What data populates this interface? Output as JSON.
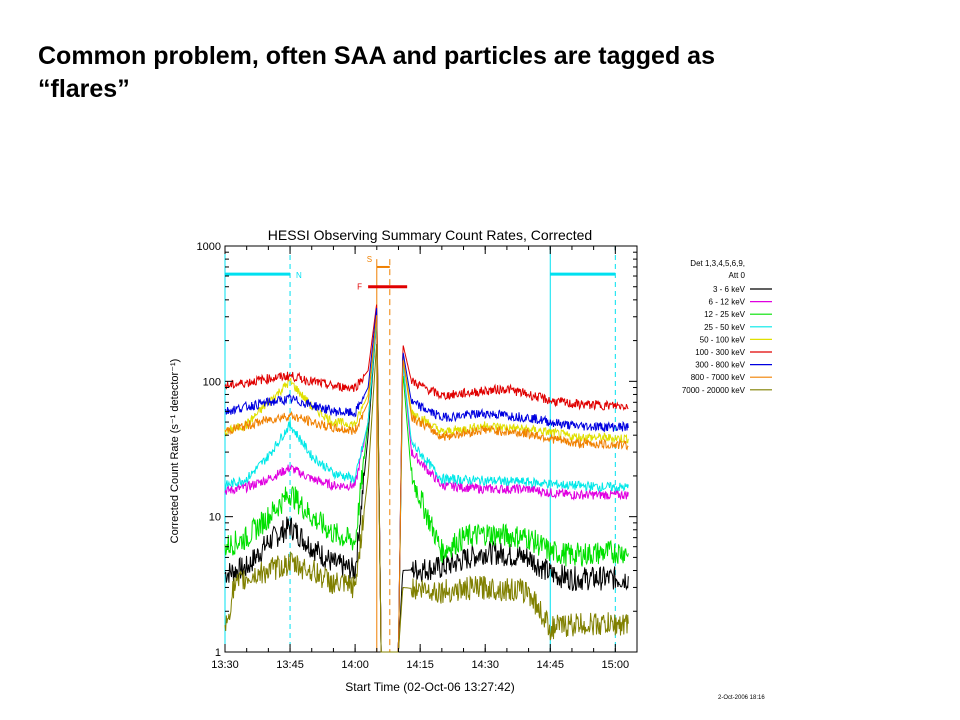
{
  "slide": {
    "title_line1": "Common problem, often SAA and particles are tagged as",
    "title_line2": "“flares”"
  },
  "footer": {
    "stamp": "2-Oct-2006 18:16"
  },
  "chart_data": {
    "type": "line",
    "title": "HESSI Observing Summary Count Rates, Corrected",
    "xlabel": "Start Time (02-Oct-06 13:27:42)",
    "ylabel": "Corrected Count Rate (s⁻¹ detector⁻¹)",
    "y_scale": "log",
    "ylim": [
      1,
      1000
    ],
    "xlim": [
      "13:30",
      "15:05"
    ],
    "x_ticks": [
      "13:30",
      "13:45",
      "14:00",
      "14:15",
      "14:30",
      "14:45",
      "15:00"
    ],
    "y_ticks": [
      "1",
      "10",
      "100",
      "1000"
    ],
    "grid": false,
    "legend_position": "right",
    "legend_header": [
      "Det 1,3,4,5,6,9,",
      "Att 0"
    ],
    "annotations": {
      "N_label": "N",
      "S_label": "S",
      "F_label": "F",
      "night_intervals": [
        [
          "13:30",
          "13:45"
        ],
        [
          "14:45",
          "15:00"
        ]
      ],
      "saa_markers": [
        "14:05",
        "14:08"
      ],
      "flare_bar": [
        "14:03",
        "14:12"
      ]
    },
    "colors": {
      "night": "#00e0f0",
      "saa": "#f08000",
      "flare": "#e00000"
    },
    "series": [
      {
        "name": "3 - 6 keV",
        "color": "#000000",
        "points": [
          [
            "13:30",
            3.8
          ],
          [
            "13:35",
            4.2
          ],
          [
            "13:40",
            6.5
          ],
          [
            "13:45",
            8.5
          ],
          [
            "13:50",
            6.0
          ],
          [
            "13:55",
            4.5
          ],
          [
            "14:00",
            4.0
          ],
          [
            "14:03",
            40
          ],
          [
            "14:05",
            300
          ],
          [
            "14:06",
            1
          ],
          [
            "14:08",
            1
          ],
          [
            "14:10",
            1
          ],
          [
            "14:11",
            4.0
          ],
          [
            "14:20",
            4.2
          ],
          [
            "14:30",
            5.5
          ],
          [
            "14:40",
            5.0
          ],
          [
            "14:45",
            3.8
          ],
          [
            "14:50",
            3.5
          ],
          [
            "15:00",
            3.5
          ],
          [
            "15:03",
            3.5
          ]
        ]
      },
      {
        "name": "6 - 12 keV",
        "color": "#e000e0",
        "points": [
          [
            "13:30",
            15.5
          ],
          [
            "13:35",
            16.5
          ],
          [
            "13:40",
            19
          ],
          [
            "13:45",
            23
          ],
          [
            "13:50",
            19
          ],
          [
            "13:55",
            17
          ],
          [
            "14:00",
            17
          ],
          [
            "14:03",
            50
          ],
          [
            "14:05",
            300
          ],
          [
            "14:06",
            1
          ],
          [
            "14:08",
            1
          ],
          [
            "14:10",
            1
          ],
          [
            "14:11",
            140
          ],
          [
            "14:13",
            30
          ],
          [
            "14:20",
            17
          ],
          [
            "14:30",
            16
          ],
          [
            "14:40",
            16
          ],
          [
            "14:45",
            15
          ],
          [
            "14:50",
            14.5
          ],
          [
            "15:00",
            14.5
          ],
          [
            "15:03",
            14.5
          ]
        ]
      },
      {
        "name": "12 - 25 keV",
        "color": "#00e000",
        "points": [
          [
            "13:30",
            6.0
          ],
          [
            "13:35",
            7.0
          ],
          [
            "13:40",
            10
          ],
          [
            "13:45",
            15
          ],
          [
            "13:50",
            10
          ],
          [
            "13:55",
            7.5
          ],
          [
            "14:00",
            6.5
          ],
          [
            "14:03",
            50
          ],
          [
            "14:05",
            300
          ],
          [
            "14:06",
            1
          ],
          [
            "14:08",
            1
          ],
          [
            "14:10",
            1
          ],
          [
            "14:11",
            120
          ],
          [
            "14:13",
            20
          ],
          [
            "14:20",
            5.5
          ],
          [
            "14:25",
            7.0
          ],
          [
            "14:30",
            7.5
          ],
          [
            "14:40",
            7.0
          ],
          [
            "14:45",
            5.5
          ],
          [
            "14:50",
            5.2
          ],
          [
            "15:00",
            5.5
          ],
          [
            "15:03",
            5.5
          ]
        ]
      },
      {
        "name": "25 - 50 keV",
        "color": "#00e8e8",
        "points": [
          [
            "13:30",
            17
          ],
          [
            "13:35",
            19
          ],
          [
            "13:40",
            28
          ],
          [
            "13:45",
            48
          ],
          [
            "13:50",
            28
          ],
          [
            "13:55",
            21
          ],
          [
            "14:00",
            19
          ],
          [
            "14:03",
            50
          ],
          [
            "14:05",
            300
          ],
          [
            "14:06",
            1
          ],
          [
            "14:08",
            1
          ],
          [
            "14:10",
            1
          ],
          [
            "14:11",
            140
          ],
          [
            "14:13",
            35
          ],
          [
            "14:20",
            19
          ],
          [
            "14:30",
            18.5
          ],
          [
            "14:40",
            18
          ],
          [
            "14:45",
            17.5
          ],
          [
            "14:50",
            17
          ],
          [
            "15:00",
            16.5
          ],
          [
            "15:03",
            16.5
          ]
        ]
      },
      {
        "name": "50 - 100 keV",
        "color": "#e0e000",
        "points": [
          [
            "13:30",
            42
          ],
          [
            "13:35",
            48
          ],
          [
            "13:40",
            70
          ],
          [
            "13:45",
            100
          ],
          [
            "13:50",
            65
          ],
          [
            "13:55",
            50
          ],
          [
            "14:00",
            48
          ],
          [
            "14:03",
            80
          ],
          [
            "14:05",
            350
          ],
          [
            "14:06",
            1
          ],
          [
            "14:08",
            1
          ],
          [
            "14:10",
            1
          ],
          [
            "14:11",
            160
          ],
          [
            "14:13",
            60
          ],
          [
            "14:20",
            42
          ],
          [
            "14:30",
            47
          ],
          [
            "14:40",
            44
          ],
          [
            "14:45",
            42
          ],
          [
            "14:50",
            39
          ],
          [
            "15:00",
            38
          ],
          [
            "15:03",
            38
          ]
        ]
      },
      {
        "name": "100 - 300 keV",
        "color": "#e00000",
        "points": [
          [
            "13:30",
            92
          ],
          [
            "13:35",
            98
          ],
          [
            "13:40",
            105
          ],
          [
            "13:45",
            110
          ],
          [
            "13:50",
            100
          ],
          [
            "13:55",
            92
          ],
          [
            "14:00",
            90
          ],
          [
            "14:03",
            120
          ],
          [
            "14:05",
            380
          ],
          [
            "14:06",
            1
          ],
          [
            "14:08",
            1
          ],
          [
            "14:10",
            1
          ],
          [
            "14:11",
            190
          ],
          [
            "14:13",
            100
          ],
          [
            "14:20",
            78
          ],
          [
            "14:30",
            85
          ],
          [
            "14:35",
            88
          ],
          [
            "14:40",
            80
          ],
          [
            "14:45",
            72
          ],
          [
            "14:50",
            68
          ],
          [
            "15:00",
            66
          ],
          [
            "15:03",
            66
          ]
        ]
      },
      {
        "name": "300 - 800 keV",
        "color": "#0000e0",
        "points": [
          [
            "13:30",
            60
          ],
          [
            "13:35",
            65
          ],
          [
            "13:40",
            70
          ],
          [
            "13:45",
            74
          ],
          [
            "13:50",
            67
          ],
          [
            "13:55",
            60
          ],
          [
            "14:00",
            58
          ],
          [
            "14:03",
            90
          ],
          [
            "14:05",
            360
          ],
          [
            "14:06",
            1
          ],
          [
            "14:08",
            1
          ],
          [
            "14:10",
            1
          ],
          [
            "14:11",
            170
          ],
          [
            "14:13",
            70
          ],
          [
            "14:20",
            54
          ],
          [
            "14:30",
            58
          ],
          [
            "14:40",
            54
          ],
          [
            "14:45",
            50
          ],
          [
            "14:50",
            47
          ],
          [
            "15:00",
            46
          ],
          [
            "15:03",
            46
          ]
        ]
      },
      {
        "name": "800 - 7000 keV",
        "color": "#f08000",
        "points": [
          [
            "13:30",
            43
          ],
          [
            "13:35",
            47
          ],
          [
            "13:40",
            52
          ],
          [
            "13:45",
            56
          ],
          [
            "13:50",
            50
          ],
          [
            "13:55",
            45
          ],
          [
            "14:00",
            43
          ],
          [
            "14:03",
            70
          ],
          [
            "14:05",
            320
          ],
          [
            "14:06",
            1
          ],
          [
            "14:08",
            1
          ],
          [
            "14:10",
            1
          ],
          [
            "14:11",
            150
          ],
          [
            "14:13",
            55
          ],
          [
            "14:20",
            39
          ],
          [
            "14:30",
            44
          ],
          [
            "14:40",
            41
          ],
          [
            "14:45",
            38
          ],
          [
            "14:50",
            35
          ],
          [
            "15:00",
            34
          ],
          [
            "15:03",
            34
          ]
        ]
      },
      {
        "name": "7000 - 20000 keV",
        "color": "#808000",
        "points": [
          [
            "13:30",
            1.4
          ],
          [
            "13:32",
            3.0
          ],
          [
            "13:35",
            3.5
          ],
          [
            "13:40",
            4.0
          ],
          [
            "13:45",
            4.5
          ],
          [
            "13:50",
            4.0
          ],
          [
            "13:55",
            3.2
          ],
          [
            "14:00",
            3.0
          ],
          [
            "14:03",
            20
          ],
          [
            "14:05",
            200
          ],
          [
            "14:06",
            1
          ],
          [
            "14:08",
            1
          ],
          [
            "14:10",
            1
          ],
          [
            "14:11",
            3.0
          ],
          [
            "14:20",
            2.8
          ],
          [
            "14:30",
            3.0
          ],
          [
            "14:40",
            2.8
          ],
          [
            "14:45",
            1.5
          ],
          [
            "14:50",
            1.6
          ],
          [
            "15:00",
            1.6
          ],
          [
            "15:03",
            1.6
          ]
        ]
      }
    ]
  }
}
